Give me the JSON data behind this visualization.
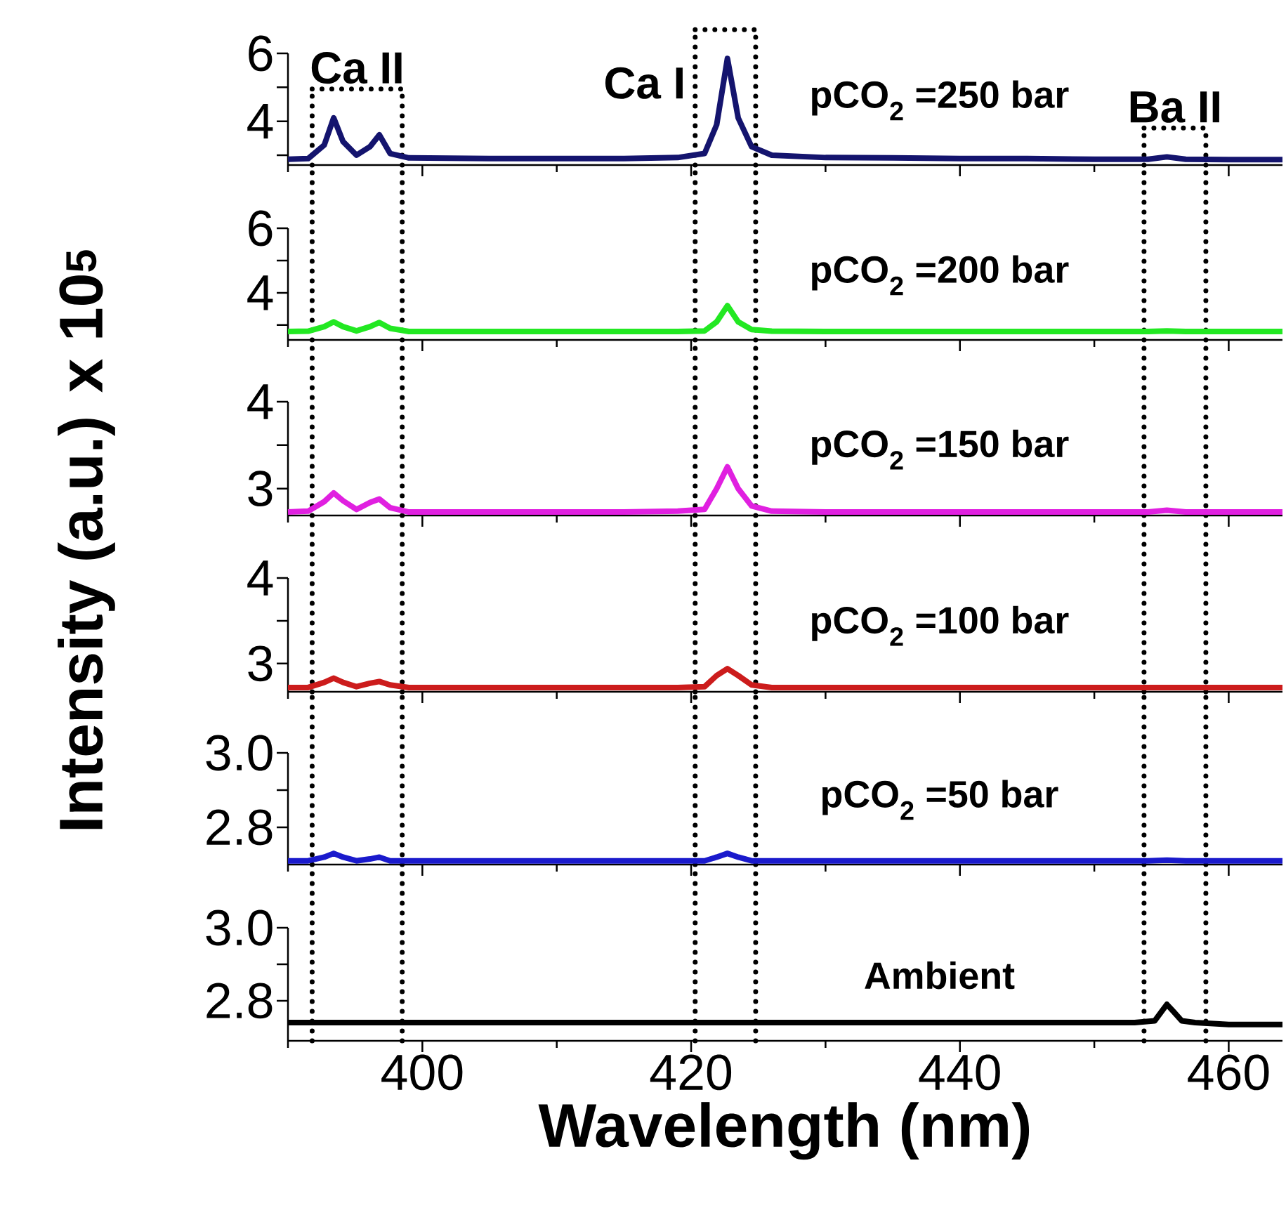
{
  "chart_data": [
    {
      "type": "line",
      "xlim": [
        390,
        464
      ],
      "ylim": [
        2.71,
        6
      ],
      "xticks": [
        {
          "value": 390,
          "label": null
        },
        400,
        {
          "value": 410,
          "label": null
        },
        420,
        {
          "value": 430,
          "label": null
        },
        440,
        {
          "value": 450,
          "label": null
        },
        460
      ],
      "yticks": [
        {
          "value": 3,
          "label": null
        },
        4,
        {
          "value": 5,
          "label": null
        },
        6
      ],
      "tick_labels": "y",
      "annotations": [
        "Ca II",
        "Ca I",
        "Ba II"
      ],
      "ref_lines": [
        {
          "axis": "x",
          "value": 391.8,
          "line_style": "dotted"
        },
        {
          "axis": "x",
          "value": 398.5,
          "line_style": "dotted"
        },
        {
          "axis": "x",
          "value": 420.3,
          "line_style": "dotted"
        },
        {
          "axis": "x",
          "value": 424.8,
          "line_style": "dotted"
        },
        {
          "axis": "x",
          "value": 453.7,
          "line_style": "dotted"
        },
        {
          "axis": "x",
          "value": 458.3,
          "line_style": "dotted"
        }
      ],
      "series": [
        {
          "name": "pCO$_{2}$ =250 bar",
          "color": "#14146e",
          "x": [
            390,
            391.5,
            392.7,
            393.4,
            394.1,
            395.1,
            396.1,
            396.8,
            397.6,
            399,
            405,
            410,
            415,
            419,
            421,
            421.9,
            422.7,
            423.5,
            424.5,
            426,
            430,
            435,
            440,
            445,
            450,
            454,
            455.4,
            456.8,
            460,
            464
          ],
          "values": [
            2.88,
            2.9,
            3.3,
            4.1,
            3.4,
            3.0,
            3.25,
            3.6,
            3.05,
            2.92,
            2.9,
            2.9,
            2.9,
            2.93,
            3.05,
            3.9,
            5.85,
            4.1,
            3.25,
            3.0,
            2.93,
            2.92,
            2.9,
            2.9,
            2.88,
            2.88,
            2.95,
            2.88,
            2.87,
            2.87
          ]
        }
      ]
    },
    {
      "type": "line",
      "xlim": [
        390,
        464
      ],
      "ylim": [
        2.54,
        6
      ],
      "xticks": [
        {
          "value": 390,
          "label": null
        },
        400,
        {
          "value": 410,
          "label": null
        },
        420,
        {
          "value": 430,
          "label": null
        },
        440,
        {
          "value": 450,
          "label": null
        },
        460
      ],
      "yticks": [
        {
          "value": 3,
          "label": null
        },
        4,
        {
          "value": 5,
          "label": null
        },
        6
      ],
      "tick_labels": "y",
      "ref_lines": [
        {
          "axis": "x",
          "value": 391.8,
          "line_style": "dotted"
        },
        {
          "axis": "x",
          "value": 398.5,
          "line_style": "dotted"
        },
        {
          "axis": "x",
          "value": 420.3,
          "line_style": "dotted"
        },
        {
          "axis": "x",
          "value": 424.8,
          "line_style": "dotted"
        },
        {
          "axis": "x",
          "value": 453.7,
          "line_style": "dotted"
        },
        {
          "axis": "x",
          "value": 458.3,
          "line_style": "dotted"
        }
      ],
      "series": [
        {
          "name": "pCO$_{2}$ =200 bar",
          "color": "#22e822",
          "x": [
            390,
            391.5,
            392.7,
            393.4,
            394.1,
            395.1,
            396.1,
            396.8,
            397.6,
            399,
            405,
            410,
            415,
            419,
            421,
            421.9,
            422.7,
            423.5,
            424.5,
            426,
            430,
            435,
            440,
            445,
            450,
            454,
            455.4,
            456.8,
            460,
            464
          ],
          "values": [
            2.8,
            2.81,
            2.95,
            3.1,
            2.95,
            2.82,
            2.95,
            3.08,
            2.9,
            2.8,
            2.8,
            2.8,
            2.8,
            2.8,
            2.82,
            3.1,
            3.6,
            3.1,
            2.86,
            2.81,
            2.8,
            2.8,
            2.8,
            2.8,
            2.8,
            2.8,
            2.82,
            2.8,
            2.8,
            2.8
          ]
        }
      ]
    },
    {
      "type": "line",
      "xlim": [
        390,
        464
      ],
      "ylim": [
        2.69,
        4
      ],
      "xticks": [
        {
          "value": 390,
          "label": null
        },
        400,
        {
          "value": 410,
          "label": null
        },
        420,
        {
          "value": 430,
          "label": null
        },
        440,
        {
          "value": 450,
          "label": null
        },
        460
      ],
      "yticks": [
        3,
        {
          "value": 3.5,
          "label": null
        },
        4
      ],
      "tick_labels": "y",
      "ylabel": "Intensity (a.u.) x 10$^{5}$",
      "ref_lines": [
        {
          "axis": "x",
          "value": 391.8,
          "line_style": "dotted"
        },
        {
          "axis": "x",
          "value": 398.5,
          "line_style": "dotted"
        },
        {
          "axis": "x",
          "value": 420.3,
          "line_style": "dotted"
        },
        {
          "axis": "x",
          "value": 424.8,
          "line_style": "dotted"
        },
        {
          "axis": "x",
          "value": 453.7,
          "line_style": "dotted"
        },
        {
          "axis": "x",
          "value": 458.3,
          "line_style": "dotted"
        }
      ],
      "series": [
        {
          "name": "pCO$_{2}$ =150 bar",
          "color": "#e020e0",
          "x": [
            390,
            391.5,
            392.7,
            393.4,
            394.1,
            395.1,
            396.1,
            396.8,
            397.6,
            399,
            405,
            410,
            415,
            419,
            421,
            421.9,
            422.7,
            423.5,
            424.5,
            426,
            430,
            435,
            440,
            445,
            450,
            454,
            455.4,
            456.8,
            460,
            464
          ],
          "values": [
            2.73,
            2.74,
            2.85,
            2.95,
            2.86,
            2.76,
            2.84,
            2.88,
            2.78,
            2.73,
            2.73,
            2.73,
            2.73,
            2.74,
            2.76,
            3.0,
            3.25,
            3.0,
            2.8,
            2.74,
            2.73,
            2.73,
            2.73,
            2.73,
            2.73,
            2.73,
            2.75,
            2.73,
            2.73,
            2.73
          ]
        }
      ]
    },
    {
      "type": "line",
      "xlim": [
        390,
        464
      ],
      "ylim": [
        2.67,
        4
      ],
      "xticks": [
        {
          "value": 390,
          "label": null
        },
        400,
        {
          "value": 410,
          "label": null
        },
        420,
        {
          "value": 430,
          "label": null
        },
        440,
        {
          "value": 450,
          "label": null
        },
        460
      ],
      "yticks": [
        3,
        {
          "value": 3.5,
          "label": null
        },
        4
      ],
      "tick_labels": "y",
      "ref_lines": [
        {
          "axis": "x",
          "value": 391.8,
          "line_style": "dotted"
        },
        {
          "axis": "x",
          "value": 398.5,
          "line_style": "dotted"
        },
        {
          "axis": "x",
          "value": 420.3,
          "line_style": "dotted"
        },
        {
          "axis": "x",
          "value": 424.8,
          "line_style": "dotted"
        },
        {
          "axis": "x",
          "value": 453.7,
          "line_style": "dotted"
        },
        {
          "axis": "x",
          "value": 458.3,
          "line_style": "dotted"
        }
      ],
      "series": [
        {
          "name": "pCO$_{2}$ =100 bar",
          "color": "#cc1c1c",
          "x": [
            390,
            391.5,
            392.7,
            393.4,
            394.1,
            395.1,
            396.1,
            396.8,
            397.6,
            399,
            405,
            410,
            415,
            419,
            421,
            421.9,
            422.7,
            423.5,
            424.5,
            426,
            430,
            435,
            440,
            445,
            450,
            454,
            455.4,
            456.8,
            460,
            464
          ],
          "values": [
            2.72,
            2.72,
            2.78,
            2.83,
            2.78,
            2.73,
            2.77,
            2.79,
            2.75,
            2.72,
            2.72,
            2.72,
            2.72,
            2.72,
            2.73,
            2.86,
            2.94,
            2.86,
            2.75,
            2.72,
            2.72,
            2.72,
            2.72,
            2.72,
            2.72,
            2.72,
            2.72,
            2.72,
            2.72,
            2.72
          ]
        }
      ]
    },
    {
      "type": "line",
      "xlim": [
        390,
        464
      ],
      "ylim": [
        2.7,
        3
      ],
      "xticks": [
        {
          "value": 390,
          "label": null
        },
        400,
        {
          "value": 410,
          "label": null
        },
        420,
        {
          "value": 430,
          "label": null
        },
        440,
        {
          "value": 450,
          "label": null
        },
        460
      ],
      "yticks": [
        2.8,
        {
          "value": 2.9,
          "label": null
        },
        {
          "value": 3,
          "label": "3.0"
        }
      ],
      "tick_labels": "y",
      "ref_lines": [
        {
          "axis": "x",
          "value": 391.8,
          "line_style": "dotted"
        },
        {
          "axis": "x",
          "value": 398.5,
          "line_style": "dotted"
        },
        {
          "axis": "x",
          "value": 420.3,
          "line_style": "dotted"
        },
        {
          "axis": "x",
          "value": 424.8,
          "line_style": "dotted"
        },
        {
          "axis": "x",
          "value": 453.7,
          "line_style": "dotted"
        },
        {
          "axis": "x",
          "value": 458.3,
          "line_style": "dotted"
        }
      ],
      "series": [
        {
          "name": "pCO$_{2}$ =50 bar",
          "color": "#1a1acc",
          "x": [
            390,
            391.5,
            392.7,
            393.4,
            394.1,
            395.1,
            396.1,
            396.8,
            397.6,
            399,
            405,
            410,
            415,
            419,
            421,
            421.9,
            422.7,
            423.5,
            424.5,
            426,
            430,
            435,
            440,
            445,
            450,
            454,
            455.4,
            456.8,
            460,
            464
          ],
          "values": [
            2.71,
            2.71,
            2.72,
            2.73,
            2.72,
            2.71,
            2.715,
            2.72,
            2.71,
            2.71,
            2.71,
            2.71,
            2.71,
            2.71,
            2.71,
            2.72,
            2.73,
            2.72,
            2.71,
            2.71,
            2.71,
            2.71,
            2.71,
            2.71,
            2.71,
            2.71,
            2.712,
            2.71,
            2.71,
            2.71
          ]
        }
      ]
    },
    {
      "type": "line",
      "xlim": [
        390,
        464
      ],
      "ylim": [
        2.69,
        3
      ],
      "xticks": [
        {
          "value": 390,
          "label": null
        },
        400,
        {
          "value": 410,
          "label": null
        },
        420,
        {
          "value": 430,
          "label": null
        },
        440,
        {
          "value": 450,
          "label": null
        },
        460
      ],
      "yticks": [
        2.8,
        {
          "value": 2.9,
          "label": null
        },
        {
          "value": 3,
          "label": "3.0"
        }
      ],
      "xlabel": "Wavelength (nm)",
      "ref_lines": [
        {
          "axis": "x",
          "value": 391.8,
          "line_style": "dotted"
        },
        {
          "axis": "x",
          "value": 398.5,
          "line_style": "dotted"
        },
        {
          "axis": "x",
          "value": 420.3,
          "line_style": "dotted"
        },
        {
          "axis": "x",
          "value": 424.8,
          "line_style": "dotted"
        },
        {
          "axis": "x",
          "value": 453.7,
          "line_style": "dotted"
        },
        {
          "axis": "x",
          "value": 458.3,
          "line_style": "dotted"
        }
      ],
      "series": [
        {
          "name": "Ambient",
          "color": "#000000",
          "x": [
            390,
            395,
            400,
            405,
            410,
            415,
            420,
            425,
            430,
            435,
            440,
            445,
            450,
            453,
            454.5,
            455.0,
            455.4,
            455.9,
            456.5,
            457.5,
            460,
            464
          ],
          "values": [
            2.74,
            2.74,
            2.74,
            2.74,
            2.74,
            2.74,
            2.74,
            2.74,
            2.74,
            2.74,
            2.74,
            2.74,
            2.74,
            2.74,
            2.745,
            2.77,
            2.79,
            2.77,
            2.745,
            2.74,
            2.735,
            2.735
          ]
        }
      ]
    }
  ]
}
